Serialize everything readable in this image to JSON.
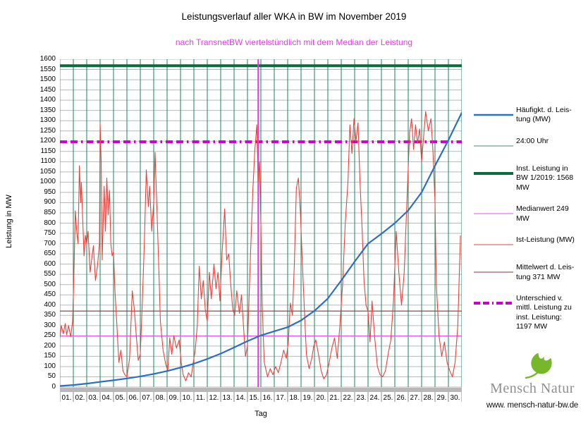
{
  "title": "Leistungsverlauf aller WKA in BW im November 2019",
  "subtitle": "nach TransnetBW viertelstündlich mit dem Median der Leistung",
  "y_axis": {
    "title": "Leistung in MW",
    "min": 0,
    "max": 1600,
    "step": 50
  },
  "x_axis": {
    "title": "Tag",
    "categories": [
      "01.",
      "02.",
      "03.",
      "04.",
      "05.",
      "06.",
      "07.",
      "08.",
      "09.",
      "10.",
      "11.",
      "12.",
      "13.",
      "14.",
      "15.",
      "16.",
      "17.",
      "18.",
      "19.",
      "20.",
      "21.",
      "22.",
      "23.",
      "24.",
      "25.",
      "26.",
      "27.",
      "28.",
      "29.",
      "30."
    ]
  },
  "colors": {
    "subtitle": "#e53ce5",
    "grid_horizontal": "#b9b9b9",
    "grid_day_vertical": "#158466",
    "zero_band": "#b8b8b8",
    "blue_series": "#2b6fc4",
    "red_series": "#e8423c",
    "inst_line": "#0a6b3d",
    "median_line": "#e355e3",
    "mittelwert_line": "#8b3333",
    "unterschied_line": "#cc00cc",
    "median_marker": "#e53ce5",
    "axis": "#8a8a8a"
  },
  "legend": {
    "items": [
      {
        "name": "haeufigkeit",
        "label": "Häufigkt. d. Leis-\ntung (MW)",
        "color": "#2b6fc4",
        "weight": 2.5,
        "dash": ""
      },
      {
        "name": "mitternacht",
        "label": "24:00 Uhr",
        "color": "#3d8a78",
        "weight": 1,
        "dash": ""
      },
      {
        "name": "inst-leistung",
        "label": "Inst. Leistung in\nBW 1/2019: 1568\nMW",
        "color": "#0a6b3d",
        "weight": 4,
        "dash": ""
      },
      {
        "name": "medianwert",
        "label": "Medianwert 249\nMW",
        "color": "#e355e3",
        "weight": 1,
        "dash": ""
      },
      {
        "name": "ist-leistung",
        "label": "Ist-Leistung (MW)",
        "color": "#e8423c",
        "weight": 1,
        "dash": ""
      },
      {
        "name": "mittelwert",
        "label": "Mittelwert d. Leis-\ntung 371 MW",
        "color": "#8b3333",
        "weight": 1,
        "dash": ""
      },
      {
        "name": "unterschied",
        "label": "Unterschied v.\nmittl. Leistung zu\ninst. Leistung:\n1197 MW",
        "color": "#cc00cc",
        "weight": 4,
        "dash": "9 4 9 4 2 4"
      }
    ]
  },
  "logo": {
    "name_left": "Mensch",
    "name_right": "Natur",
    "url": "www. mensch-natur-bw.de",
    "leaf_color": "#76b82a"
  },
  "chart_data": {
    "type": "line",
    "title": "Leistungsverlauf aller WKA in BW im November 2019",
    "subtitle": "nach TransnetBW viertelstündlich mit dem Median der Leistung",
    "xlabel": "Tag",
    "ylabel": "Leistung in MW",
    "xlim_days": [
      1,
      31
    ],
    "ylim": [
      0,
      1600
    ],
    "grid": {
      "horizontal_step_mw": 50,
      "vertical": "one green line per day at 24:00 Uhr"
    },
    "legend_position": "right",
    "reference_lines": [
      {
        "name": "Inst. Leistung in BW 1/2019",
        "orientation": "horizontal",
        "value_mw": 1568,
        "color": "#0a6b3d",
        "width": 4,
        "dash": ""
      },
      {
        "name": "Unterschied v. mittl. Leistung zu inst. Leistung",
        "orientation": "horizontal",
        "value_mw": 1197,
        "color": "#cc00cc",
        "width": 4,
        "dash": "10 5 10 5 2.5 5"
      },
      {
        "name": "Mittelwert d. Leistung",
        "orientation": "horizontal",
        "value_mw": 371,
        "color": "#8b3333",
        "width": 1.2,
        "dash": ""
      },
      {
        "name": "Medianwert",
        "orientation": "horizontal",
        "value_mw": 249,
        "color": "#e355e3",
        "width": 1.2,
        "dash": ""
      },
      {
        "name": "Median-Position",
        "orientation": "vertical",
        "value_day": 15.8,
        "color": "#e53ce5",
        "width": 2,
        "dash": ""
      }
    ],
    "series": [
      {
        "name": "Häufigkt. d. Leistung (MW)",
        "color": "#2b6fc4",
        "width": 2.2,
        "points": [
          [
            1,
            5
          ],
          [
            2,
            10
          ],
          [
            3,
            17
          ],
          [
            4,
            25
          ],
          [
            5,
            33
          ],
          [
            6,
            42
          ],
          [
            7,
            52
          ],
          [
            8,
            64
          ],
          [
            9,
            78
          ],
          [
            10,
            95
          ],
          [
            11,
            114
          ],
          [
            12,
            137
          ],
          [
            13,
            163
          ],
          [
            14,
            193
          ],
          [
            15,
            224
          ],
          [
            16,
            252
          ],
          [
            17,
            272
          ],
          [
            18,
            292
          ],
          [
            19,
            325
          ],
          [
            20,
            372
          ],
          [
            21,
            432
          ],
          [
            22,
            520
          ],
          [
            23,
            612
          ],
          [
            24,
            700
          ],
          [
            25,
            748
          ],
          [
            26,
            800
          ],
          [
            27,
            862
          ],
          [
            28,
            950
          ],
          [
            29,
            1080
          ],
          [
            30,
            1205
          ],
          [
            31,
            1340
          ]
        ]
      },
      {
        "name": "Ist-Leistung (MW)",
        "color": "#e8423c",
        "width": 1.1,
        "points": [
          [
            1.0,
            240
          ],
          [
            1.1,
            300
          ],
          [
            1.25,
            260
          ],
          [
            1.4,
            310
          ],
          [
            1.5,
            255
          ],
          [
            1.65,
            300
          ],
          [
            1.8,
            245
          ],
          [
            1.95,
            320
          ],
          [
            2.05,
            560
          ],
          [
            2.15,
            860
          ],
          [
            2.25,
            760
          ],
          [
            2.35,
            700
          ],
          [
            2.45,
            1080
          ],
          [
            2.55,
            900
          ],
          [
            2.6,
            1000
          ],
          [
            2.7,
            820
          ],
          [
            2.8,
            640
          ],
          [
            2.9,
            740
          ],
          [
            3.0,
            700
          ],
          [
            3.1,
            760
          ],
          [
            3.25,
            560
          ],
          [
            3.4,
            640
          ],
          [
            3.5,
            690
          ],
          [
            3.65,
            520
          ],
          [
            3.8,
            590
          ],
          [
            3.95,
            700
          ],
          [
            4.0,
            1285
          ],
          [
            4.08,
            1100
          ],
          [
            4.15,
            620
          ],
          [
            4.3,
            980
          ],
          [
            4.4,
            760
          ],
          [
            4.5,
            1020
          ],
          [
            4.6,
            840
          ],
          [
            4.7,
            960
          ],
          [
            4.8,
            700
          ],
          [
            4.9,
            640
          ],
          [
            5.0,
            660
          ],
          [
            5.1,
            480
          ],
          [
            5.25,
            300
          ],
          [
            5.4,
            120
          ],
          [
            5.55,
            180
          ],
          [
            5.7,
            80
          ],
          [
            5.85,
            60
          ],
          [
            6.0,
            50
          ],
          [
            6.2,
            140
          ],
          [
            6.4,
            470
          ],
          [
            6.55,
            380
          ],
          [
            6.7,
            250
          ],
          [
            6.85,
            130
          ],
          [
            7.0,
            160
          ],
          [
            7.15,
            420
          ],
          [
            7.3,
            700
          ],
          [
            7.45,
            1060
          ],
          [
            7.6,
            880
          ],
          [
            7.7,
            980
          ],
          [
            7.85,
            760
          ],
          [
            8.0,
            900
          ],
          [
            8.1,
            1145
          ],
          [
            8.2,
            950
          ],
          [
            8.35,
            640
          ],
          [
            8.5,
            320
          ],
          [
            8.7,
            180
          ],
          [
            8.9,
            110
          ],
          [
            9.05,
            80
          ],
          [
            9.2,
            240
          ],
          [
            9.35,
            160
          ],
          [
            9.5,
            250
          ],
          [
            9.7,
            190
          ],
          [
            9.9,
            230
          ],
          [
            10.05,
            120
          ],
          [
            10.2,
            60
          ],
          [
            10.4,
            30
          ],
          [
            10.6,
            70
          ],
          [
            10.8,
            50
          ],
          [
            10.95,
            120
          ],
          [
            11.1,
            180
          ],
          [
            11.25,
            300
          ],
          [
            11.4,
            590
          ],
          [
            11.55,
            430
          ],
          [
            11.7,
            520
          ],
          [
            11.85,
            380
          ],
          [
            12.0,
            320
          ],
          [
            12.15,
            560
          ],
          [
            12.3,
            430
          ],
          [
            12.5,
            600
          ],
          [
            12.65,
            480
          ],
          [
            12.8,
            560
          ],
          [
            12.95,
            420
          ],
          [
            13.1,
            650
          ],
          [
            13.3,
            870
          ],
          [
            13.45,
            620
          ],
          [
            13.6,
            650
          ],
          [
            13.75,
            500
          ],
          [
            13.9,
            380
          ],
          [
            14.05,
            350
          ],
          [
            14.2,
            470
          ],
          [
            14.4,
            360
          ],
          [
            14.55,
            450
          ],
          [
            14.7,
            300
          ],
          [
            14.85,
            150
          ],
          [
            15.0,
            200
          ],
          [
            15.2,
            600
          ],
          [
            15.4,
            960
          ],
          [
            15.55,
            1160
          ],
          [
            15.7,
            1280
          ],
          [
            15.8,
            1000
          ],
          [
            15.9,
            1100
          ],
          [
            16.0,
            800
          ],
          [
            16.1,
            400
          ],
          [
            16.25,
            120
          ],
          [
            16.5,
            50
          ],
          [
            16.7,
            90
          ],
          [
            16.9,
            60
          ],
          [
            17.1,
            100
          ],
          [
            17.3,
            70
          ],
          [
            17.5,
            120
          ],
          [
            17.7,
            180
          ],
          [
            17.9,
            140
          ],
          [
            18.05,
            220
          ],
          [
            18.2,
            410
          ],
          [
            18.35,
            350
          ],
          [
            18.5,
            600
          ],
          [
            18.65,
            970
          ],
          [
            18.8,
            1020
          ],
          [
            18.95,
            860
          ],
          [
            19.1,
            600
          ],
          [
            19.25,
            380
          ],
          [
            19.4,
            160
          ],
          [
            19.6,
            90
          ],
          [
            19.8,
            140
          ],
          [
            19.95,
            200
          ],
          [
            20.1,
            230
          ],
          [
            20.3,
            160
          ],
          [
            20.5,
            80
          ],
          [
            20.7,
            40
          ],
          [
            20.9,
            60
          ],
          [
            21.1,
            120
          ],
          [
            21.3,
            190
          ],
          [
            21.5,
            240
          ],
          [
            21.7,
            140
          ],
          [
            21.9,
            300
          ],
          [
            22.1,
            500
          ],
          [
            22.3,
            800
          ],
          [
            22.5,
            1000
          ],
          [
            22.65,
            1280
          ],
          [
            22.8,
            1140
          ],
          [
            22.95,
            1310
          ],
          [
            23.1,
            1200
          ],
          [
            23.25,
            1290
          ],
          [
            23.4,
            1000
          ],
          [
            23.55,
            780
          ],
          [
            23.7,
            520
          ],
          [
            23.85,
            400
          ],
          [
            24.0,
            370
          ],
          [
            24.15,
            220
          ],
          [
            24.3,
            420
          ],
          [
            24.5,
            240
          ],
          [
            24.7,
            100
          ],
          [
            24.9,
            60
          ],
          [
            25.1,
            50
          ],
          [
            25.3,
            80
          ],
          [
            25.5,
            160
          ],
          [
            25.7,
            230
          ],
          [
            25.9,
            420
          ],
          [
            26.1,
            760
          ],
          [
            26.3,
            560
          ],
          [
            26.5,
            400
          ],
          [
            26.7,
            560
          ],
          [
            26.9,
            900
          ],
          [
            27.1,
            1240
          ],
          [
            27.25,
            1310
          ],
          [
            27.4,
            1160
          ],
          [
            27.55,
            1280
          ],
          [
            27.7,
            1190
          ],
          [
            27.85,
            1260
          ],
          [
            28.0,
            1100
          ],
          [
            28.15,
            1220
          ],
          [
            28.3,
            1345
          ],
          [
            28.5,
            1250
          ],
          [
            28.7,
            1310
          ],
          [
            28.85,
            1150
          ],
          [
            29.0,
            900
          ],
          [
            29.1,
            500
          ],
          [
            29.3,
            250
          ],
          [
            29.5,
            150
          ],
          [
            29.7,
            220
          ],
          [
            29.9,
            120
          ],
          [
            30.1,
            80
          ],
          [
            30.3,
            50
          ],
          [
            30.5,
            120
          ],
          [
            30.7,
            300
          ],
          [
            30.9,
            740
          ]
        ]
      }
    ]
  }
}
